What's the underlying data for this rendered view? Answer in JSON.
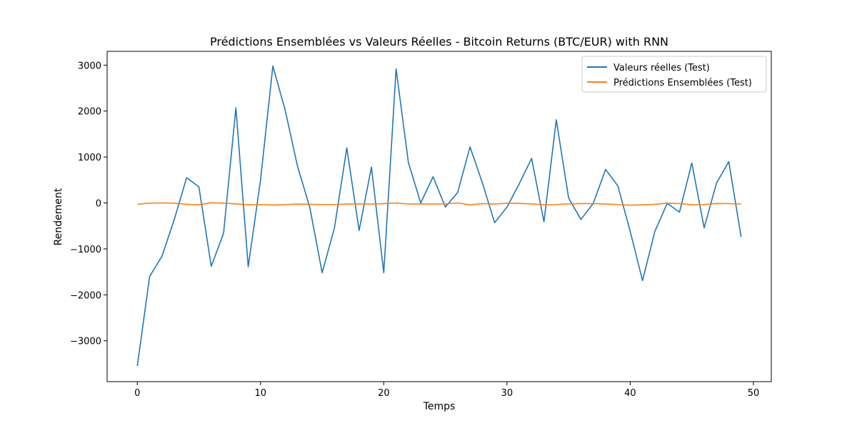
{
  "chart_data": {
    "type": "line",
    "title": "Prédictions Ensemblées vs Valeurs Réelles - Bitcoin Returns (BTC/EUR) with RNN",
    "xlabel": "Temps",
    "ylabel": "Rendement",
    "xlim": [
      -2.45,
      51.45
    ],
    "ylim": [
      -3890,
      3300
    ],
    "xticks": [
      0,
      10,
      20,
      30,
      40,
      50
    ],
    "yticks": [
      -3000,
      -2000,
      -1000,
      0,
      1000,
      2000,
      3000
    ],
    "xtick_labels": [
      "0",
      "10",
      "20",
      "30",
      "40",
      "50"
    ],
    "ytick_labels": [
      "−3000",
      "−2000",
      "−1000",
      "0",
      "1000",
      "2000",
      "3000"
    ],
    "grid": false,
    "legend_position": "top-right",
    "x": [
      0,
      1,
      2,
      3,
      4,
      5,
      6,
      7,
      8,
      9,
      10,
      11,
      12,
      13,
      14,
      15,
      16,
      17,
      18,
      19,
      20,
      21,
      22,
      23,
      24,
      25,
      26,
      27,
      28,
      29,
      30,
      31,
      32,
      33,
      34,
      35,
      36,
      37,
      38,
      39,
      40,
      41,
      42,
      43,
      44,
      45,
      46,
      47,
      48,
      49
    ],
    "series": [
      {
        "name": "Valeurs réelles (Test)",
        "color": "#1f77b4",
        "values": [
          -3550,
          -1600,
          -1160,
          -360,
          550,
          350,
          -1380,
          -660,
          2070,
          -1390,
          500,
          2980,
          2020,
          800,
          -100,
          -1520,
          -540,
          1200,
          -600,
          780,
          -1520,
          2920,
          880,
          0,
          570,
          -90,
          230,
          1220,
          440,
          -430,
          -90,
          420,
          970,
          -410,
          1810,
          110,
          -360,
          -10,
          730,
          370,
          -620,
          -1690,
          -620,
          -10,
          -200,
          870,
          -540,
          430,
          900,
          -740
        ]
      },
      {
        "name": "Prédictions Ensemblées (Test)",
        "color": "#ff7f0e",
        "values": [
          -30,
          -5,
          0,
          -5,
          -30,
          -40,
          5,
          -5,
          -20,
          -40,
          -35,
          -45,
          -35,
          -25,
          -30,
          -35,
          -35,
          -25,
          -20,
          -25,
          -15,
          0,
          -25,
          -20,
          -25,
          -20,
          0,
          -40,
          -15,
          -25,
          -5,
          -10,
          -20,
          -40,
          -35,
          -20,
          -15,
          -15,
          -25,
          -35,
          -50,
          -40,
          -30,
          -5,
          -15,
          -40,
          -35,
          -10,
          -15,
          -25
        ]
      }
    ]
  }
}
